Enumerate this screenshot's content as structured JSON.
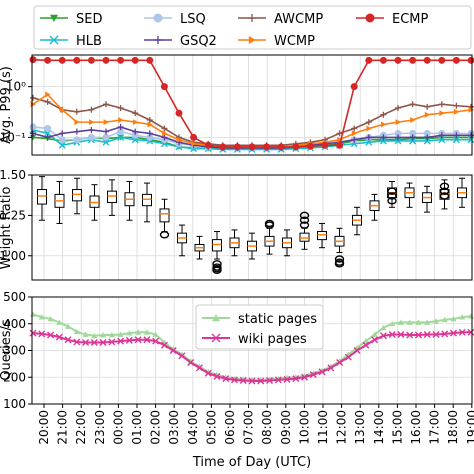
{
  "chart_data": [
    {
      "type": "line",
      "ylabel": "Avg. P99 (s)",
      "yscale": "log",
      "ylim": [
        0.045,
        4.2
      ],
      "yticks": [
        0.1,
        1
      ],
      "ytick_labels": [
        "10⁻¹",
        "10⁰"
      ],
      "grid": true,
      "legend_position": "top",
      "series": [
        {
          "name": "SED",
          "color": "#2ca02c",
          "marker": "triangle-down",
          "values": [
            0.1,
            0.095,
            0.085,
            0.09,
            0.1,
            0.095,
            0.1,
            0.1,
            0.09,
            0.08,
            0.065,
            0.062,
            0.06,
            0.06,
            0.06,
            0.06,
            0.06,
            0.06,
            0.062,
            0.065,
            0.07,
            0.075,
            0.085,
            0.09,
            0.09,
            0.09,
            0.095,
            0.095,
            0.1,
            0.1,
            0.1
          ]
        },
        {
          "name": "HLB",
          "color": "#17becf",
          "marker": "x",
          "values": [
            0.14,
            0.12,
            0.07,
            0.08,
            0.09,
            0.08,
            0.1,
            0.09,
            0.085,
            0.075,
            0.065,
            0.06,
            0.06,
            0.058,
            0.058,
            0.058,
            0.058,
            0.058,
            0.06,
            0.062,
            0.065,
            0.07,
            0.075,
            0.08,
            0.085,
            0.085,
            0.085,
            0.085,
            0.09,
            0.09,
            0.09
          ]
        },
        {
          "name": "LSQ",
          "color": "#aec7e8",
          "marker": "circle",
          "values": [
            0.16,
            0.15,
            0.09,
            0.09,
            0.1,
            0.1,
            0.13,
            0.11,
            0.1,
            0.09,
            0.075,
            0.07,
            0.065,
            0.065,
            0.065,
            0.065,
            0.065,
            0.065,
            0.067,
            0.07,
            0.075,
            0.08,
            0.09,
            0.1,
            0.11,
            0.12,
            0.12,
            0.12,
            0.12,
            0.12,
            0.12
          ]
        },
        {
          "name": "GSQ2",
          "color": "#5e3c99",
          "marker": "plus",
          "values": [
            0.12,
            0.1,
            0.12,
            0.13,
            0.14,
            0.13,
            0.16,
            0.13,
            0.12,
            0.1,
            0.08,
            0.07,
            0.065,
            0.062,
            0.062,
            0.062,
            0.062,
            0.062,
            0.065,
            0.07,
            0.075,
            0.08,
            0.09,
            0.1,
            0.1,
            0.1,
            0.1,
            0.1,
            0.11,
            0.11,
            0.11
          ]
        },
        {
          "name": "AWCMP",
          "color": "#8c564b",
          "marker": "plus",
          "values": [
            0.6,
            0.5,
            0.35,
            0.32,
            0.35,
            0.45,
            0.38,
            0.3,
            0.22,
            0.15,
            0.1,
            0.08,
            0.075,
            0.07,
            0.07,
            0.07,
            0.07,
            0.07,
            0.075,
            0.08,
            0.09,
            0.12,
            0.15,
            0.2,
            0.28,
            0.38,
            0.45,
            0.4,
            0.45,
            0.42,
            0.4
          ]
        },
        {
          "name": "WCMP",
          "color": "#ff7f0e",
          "marker": "triangle-right",
          "values": [
            0.45,
            0.7,
            0.35,
            0.2,
            0.2,
            0.2,
            0.22,
            0.2,
            0.18,
            0.12,
            0.09,
            0.075,
            0.07,
            0.065,
            0.065,
            0.065,
            0.065,
            0.065,
            0.07,
            0.075,
            0.08,
            0.09,
            0.12,
            0.15,
            0.18,
            0.2,
            0.22,
            0.28,
            0.3,
            0.32,
            0.35
          ]
        },
        {
          "name": "ECMP",
          "color": "#d62728",
          "marker": "circle",
          "values": [
            3.4,
            3.3,
            3.3,
            3.3,
            3.3,
            3.3,
            3.3,
            3.3,
            3.3,
            1.0,
            0.3,
            0.1,
            0.07,
            0.065,
            0.065,
            0.065,
            0.065,
            0.065,
            0.065,
            0.067,
            0.07,
            0.07,
            1.0,
            3.3,
            3.3,
            3.3,
            3.3,
            3.3,
            3.3,
            3.3,
            3.3
          ]
        }
      ]
    },
    {
      "type": "box",
      "ylabel": "Weight Ratio",
      "ylim": [
        0.85,
        1.5
      ],
      "yticks": [
        1.0,
        1.25,
        1.5
      ],
      "ytick_labels": [
        "1.00",
        "1.25",
        "1.50"
      ],
      "grid": true,
      "boxes": [
        {
          "median": 1.37,
          "q1": 1.32,
          "q3": 1.41,
          "lo": 1.22,
          "hi": 1.49,
          "fliers": []
        },
        {
          "median": 1.34,
          "q1": 1.3,
          "q3": 1.38,
          "lo": 1.2,
          "hi": 1.46,
          "fliers": []
        },
        {
          "median": 1.38,
          "q1": 1.34,
          "q3": 1.41,
          "lo": 1.26,
          "hi": 1.48,
          "fliers": []
        },
        {
          "median": 1.33,
          "q1": 1.3,
          "q3": 1.37,
          "lo": 1.22,
          "hi": 1.44,
          "fliers": []
        },
        {
          "median": 1.37,
          "q1": 1.33,
          "q3": 1.4,
          "lo": 1.25,
          "hi": 1.47,
          "fliers": []
        },
        {
          "median": 1.35,
          "q1": 1.31,
          "q3": 1.39,
          "lo": 1.22,
          "hi": 1.46,
          "fliers": []
        },
        {
          "median": 1.35,
          "q1": 1.31,
          "q3": 1.38,
          "lo": 1.21,
          "hi": 1.45,
          "fliers": []
        },
        {
          "median": 1.26,
          "q1": 1.21,
          "q3": 1.29,
          "lo": 1.15,
          "hi": 1.35,
          "fliers": [
            1.13
          ]
        },
        {
          "median": 1.11,
          "q1": 1.08,
          "q3": 1.14,
          "lo": 1.0,
          "hi": 1.19,
          "fliers": []
        },
        {
          "median": 1.05,
          "q1": 1.03,
          "q3": 1.07,
          "lo": 0.98,
          "hi": 1.12,
          "fliers": []
        },
        {
          "median": 1.07,
          "q1": 1.03,
          "q3": 1.1,
          "lo": 0.98,
          "hi": 1.15,
          "fliers": [
            0.95,
            0.93,
            0.92,
            0.91
          ]
        },
        {
          "median": 1.08,
          "q1": 1.05,
          "q3": 1.11,
          "lo": 1.0,
          "hi": 1.16,
          "fliers": []
        },
        {
          "median": 1.06,
          "q1": 1.03,
          "q3": 1.09,
          "lo": 0.98,
          "hi": 1.14,
          "fliers": []
        },
        {
          "median": 1.09,
          "q1": 1.06,
          "q3": 1.12,
          "lo": 1.01,
          "hi": 1.17,
          "fliers": [
            1.19,
            1.2
          ]
        },
        {
          "median": 1.08,
          "q1": 1.05,
          "q3": 1.11,
          "lo": 1.0,
          "hi": 1.16,
          "fliers": []
        },
        {
          "median": 1.11,
          "q1": 1.09,
          "q3": 1.14,
          "lo": 1.04,
          "hi": 1.17,
          "fliers": [
            1.19,
            1.22,
            1.25
          ]
        },
        {
          "median": 1.13,
          "q1": 1.1,
          "q3": 1.15,
          "lo": 1.05,
          "hi": 1.2,
          "fliers": []
        },
        {
          "median": 1.09,
          "q1": 1.06,
          "q3": 1.12,
          "lo": 1.02,
          "hi": 1.17,
          "fliers": [
            0.98,
            0.96,
            0.95
          ]
        },
        {
          "median": 1.22,
          "q1": 1.19,
          "q3": 1.25,
          "lo": 1.13,
          "hi": 1.3,
          "fliers": []
        },
        {
          "median": 1.31,
          "q1": 1.28,
          "q3": 1.34,
          "lo": 1.22,
          "hi": 1.38,
          "fliers": []
        },
        {
          "median": 1.39,
          "q1": 1.36,
          "q3": 1.42,
          "lo": 1.3,
          "hi": 1.46,
          "fliers": [
            1.34,
            1.37,
            1.4
          ]
        },
        {
          "median": 1.39,
          "q1": 1.36,
          "q3": 1.42,
          "lo": 1.3,
          "hi": 1.45,
          "fliers": []
        },
        {
          "median": 1.36,
          "q1": 1.33,
          "q3": 1.39,
          "lo": 1.27,
          "hi": 1.43,
          "fliers": []
        },
        {
          "median": 1.38,
          "q1": 1.35,
          "q3": 1.41,
          "lo": 1.29,
          "hi": 1.47,
          "fliers": [
            1.37,
            1.4,
            1.43
          ]
        },
        {
          "median": 1.39,
          "q1": 1.36,
          "q3": 1.42,
          "lo": 1.3,
          "hi": 1.48,
          "fliers": []
        }
      ]
    },
    {
      "type": "line",
      "ylabel": "Queries/s",
      "ylim": [
        100,
        500
      ],
      "yticks": [
        100,
        200,
        300,
        400,
        500
      ],
      "grid": true,
      "legend_position": "top-center",
      "series": [
        {
          "name": "static pages",
          "color": "#a1d99b",
          "marker": "triangle-up",
          "values": [
            435,
            425,
            418,
            405,
            390,
            370,
            360,
            355,
            358,
            358,
            360,
            365,
            368,
            368,
            360,
            330,
            305,
            285,
            260,
            240,
            220,
            210,
            200,
            195,
            192,
            190,
            190,
            192,
            195,
            198,
            200,
            205,
            215,
            225,
            240,
            260,
            285,
            310,
            335,
            360,
            385,
            400,
            405,
            405,
            405,
            405,
            410,
            415,
            418,
            425,
            428
          ]
        },
        {
          "name": "wiki pages",
          "color": "#dd3497",
          "marker": "x",
          "values": [
            365,
            362,
            358,
            350,
            340,
            332,
            330,
            330,
            330,
            332,
            335,
            338,
            340,
            340,
            335,
            320,
            300,
            280,
            255,
            235,
            215,
            203,
            195,
            190,
            188,
            186,
            186,
            188,
            190,
            192,
            195,
            200,
            210,
            220,
            235,
            255,
            275,
            300,
            320,
            340,
            355,
            360,
            360,
            358,
            358,
            360,
            360,
            362,
            365,
            368,
            368
          ]
        }
      ]
    }
  ],
  "x_tick_labels": [
    "20:00",
    "21:00",
    "22:00",
    "23:00",
    "00:00",
    "01:00",
    "02:00",
    "03:00",
    "04:00",
    "05:00",
    "06:00",
    "07:00",
    "08:00",
    "09:00",
    "10:00",
    "11:00",
    "12:00",
    "13:00",
    "14:00",
    "15:00",
    "16:00",
    "17:00",
    "18:00",
    "19:00"
  ],
  "xlabel": "Time of Day (UTC)"
}
